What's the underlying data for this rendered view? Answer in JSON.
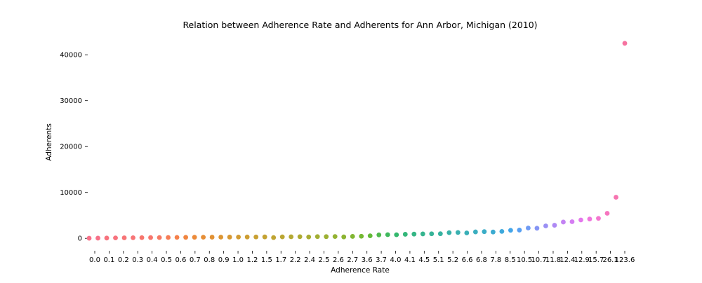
{
  "chart_data": {
    "type": "scatter",
    "title": "Relation between Adherence Rate and Adherents for Ann Arbor, Michigan (2010)",
    "xlabel": "Adherence Rate",
    "ylabel": "Adherents",
    "x_scale": "categorical",
    "ylim": [
      -1800,
      44000
    ],
    "y_ticks": [
      0,
      10000,
      20000,
      30000,
      40000
    ],
    "y_tick_labels": [
      "0",
      "10000",
      "20000",
      "30000",
      "40000"
    ],
    "x_tick_labels": [
      "0.0",
      "0.1",
      "0.2",
      "0.3",
      "0.4",
      "0.5",
      "0.6",
      "0.7",
      "0.8",
      "0.9",
      "1.0",
      "1.2",
      "1.5",
      "1.7",
      "2.2",
      "2.4",
      "2.5",
      "2.6",
      "2.7",
      "3.6",
      "3.7",
      "4.0",
      "4.1",
      "4.5",
      "5.1",
      "5.2",
      "6.6",
      "6.8",
      "7.8",
      "8.5",
      "10.5",
      "10.7",
      "11.8",
      "12.4",
      "12.9",
      "15.7",
      "26.1",
      "123.6"
    ],
    "grid": false,
    "legend": "none",
    "points": [
      {
        "x": 0.0,
        "y": 20,
        "color": "#f77189"
      },
      {
        "x": 0.02,
        "y": 40,
        "color": "#f77189"
      },
      {
        "x": 0.04,
        "y": 60,
        "color": "#f7737e"
      },
      {
        "x": 0.05,
        "y": 90,
        "color": "#f7737e"
      },
      {
        "x": 0.06,
        "y": 110,
        "color": "#f77476"
      },
      {
        "x": 0.1,
        "y": 130,
        "color": "#f77476"
      },
      {
        "x": 0.13,
        "y": 150,
        "color": "#f7756c"
      },
      {
        "x": 0.15,
        "y": 160,
        "color": "#f7756c"
      },
      {
        "x": 0.17,
        "y": 170,
        "color": "#f67963"
      },
      {
        "x": 0.2,
        "y": 180,
        "color": "#f67c55"
      },
      {
        "x": 0.23,
        "y": 200,
        "color": "#f5804a"
      },
      {
        "x": 0.25,
        "y": 215,
        "color": "#f0853f"
      },
      {
        "x": 0.26,
        "y": 230,
        "color": "#ec8a39"
      },
      {
        "x": 0.3,
        "y": 240,
        "color": "#e68e36"
      },
      {
        "x": 0.33,
        "y": 250,
        "color": "#e19134"
      },
      {
        "x": 0.35,
        "y": 260,
        "color": "#dc9532"
      },
      {
        "x": 0.38,
        "y": 270,
        "color": "#d79832"
      },
      {
        "x": 0.42,
        "y": 280,
        "color": "#d29b32"
      },
      {
        "x": 0.45,
        "y": 290,
        "color": "#cd9d32"
      },
      {
        "x": 0.48,
        "y": 300,
        "color": "#c9a032"
      },
      {
        "x": 0.52,
        "y": 310,
        "color": "#c4a232"
      },
      {
        "x": 0.6,
        "y": 160,
        "color": "#bfa432"
      },
      {
        "x": 0.65,
        "y": 320,
        "color": "#baa632"
      },
      {
        "x": 0.7,
        "y": 340,
        "color": "#b4a832"
      },
      {
        "x": 0.73,
        "y": 355,
        "color": "#aeaa32"
      },
      {
        "x": 0.8,
        "y": 300,
        "color": "#a8ac32"
      },
      {
        "x": 0.87,
        "y": 380,
        "color": "#a2ae32"
      },
      {
        "x": 0.9,
        "y": 370,
        "color": "#9cb032"
      },
      {
        "x": 0.93,
        "y": 390,
        "color": "#94b232"
      },
      {
        "x": 1.0,
        "y": 310,
        "color": "#8cb432"
      },
      {
        "x": 1.2,
        "y": 420,
        "color": "#81b632"
      },
      {
        "x": 1.5,
        "y": 450,
        "color": "#74b832"
      },
      {
        "x": 1.7,
        "y": 550,
        "color": "#62ba38"
      },
      {
        "x": 1.9,
        "y": 750,
        "color": "#50b94d"
      },
      {
        "x": 2.2,
        "y": 800,
        "color": "#3fb85d"
      },
      {
        "x": 2.4,
        "y": 780,
        "color": "#34b86d"
      },
      {
        "x": 2.45,
        "y": 880,
        "color": "#34b77a"
      },
      {
        "x": 2.5,
        "y": 920,
        "color": "#35b685"
      },
      {
        "x": 2.55,
        "y": 960,
        "color": "#36b58f"
      },
      {
        "x": 2.6,
        "y": 990,
        "color": "#37b398"
      },
      {
        "x": 2.7,
        "y": 1000,
        "color": "#37b2a0"
      },
      {
        "x": 3.1,
        "y": 1230,
        "color": "#38b1a8"
      },
      {
        "x": 3.6,
        "y": 1270,
        "color": "#39b0b0"
      },
      {
        "x": 3.7,
        "y": 1180,
        "color": "#39afb7"
      },
      {
        "x": 3.9,
        "y": 1400,
        "color": "#3aaebf"
      },
      {
        "x": 4.0,
        "y": 1450,
        "color": "#3badc7"
      },
      {
        "x": 4.1,
        "y": 1380,
        "color": "#3cabd1"
      },
      {
        "x": 4.5,
        "y": 1500,
        "color": "#3ea9dc"
      },
      {
        "x": 5.1,
        "y": 1750,
        "color": "#43a5e9"
      },
      {
        "x": 5.2,
        "y": 1800,
        "color": "#58a0f2"
      },
      {
        "x": 6.6,
        "y": 2250,
        "color": "#6f9bf4"
      },
      {
        "x": 6.8,
        "y": 2200,
        "color": "#8595f4"
      },
      {
        "x": 7.8,
        "y": 2700,
        "color": "#9a8ff4"
      },
      {
        "x": 8.5,
        "y": 2850,
        "color": "#ae89f4"
      },
      {
        "x": 10.5,
        "y": 3550,
        "color": "#c383f3"
      },
      {
        "x": 10.7,
        "y": 3620,
        "color": "#d57df2"
      },
      {
        "x": 11.8,
        "y": 4000,
        "color": "#e478ec"
      },
      {
        "x": 12.4,
        "y": 4200,
        "color": "#ef76dd"
      },
      {
        "x": 12.9,
        "y": 4350,
        "color": "#f476cf"
      },
      {
        "x": 15.7,
        "y": 5450,
        "color": "#f675bf"
      },
      {
        "x": 26.1,
        "y": 8950,
        "color": "#f674b0"
      },
      {
        "x": 123.6,
        "y": 42500,
        "color": "#f672a0"
      }
    ]
  }
}
